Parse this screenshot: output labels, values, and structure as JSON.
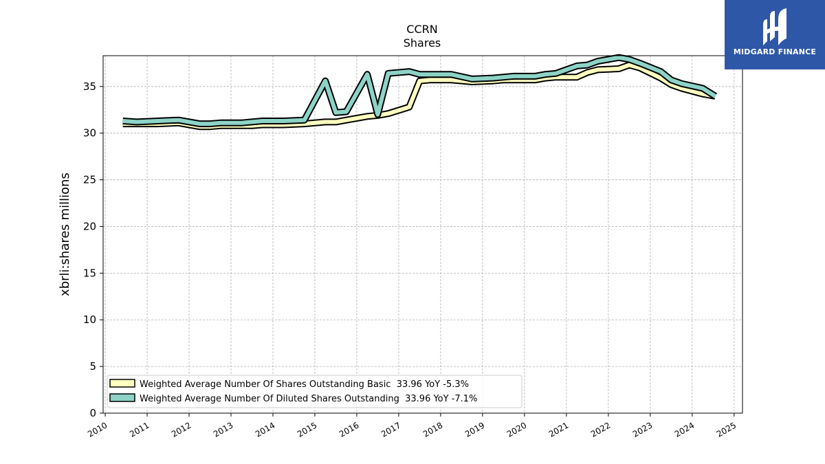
{
  "chart_data": {
    "type": "line",
    "title": "CCRN",
    "subtitle": "Shares",
    "xlabel": "",
    "ylabel": "xbrli:shares millions",
    "xlim": [
      2009.95,
      2025.2
    ],
    "ylim": [
      0,
      38.3
    ],
    "x_ticks": [
      "2010",
      "2011",
      "2012",
      "2013",
      "2014",
      "2015",
      "2016",
      "2017",
      "2018",
      "2019",
      "2020",
      "2021",
      "2022",
      "2023",
      "2024",
      "2025"
    ],
    "y_ticks": [
      "0",
      "5",
      "10",
      "15",
      "20",
      "25",
      "30",
      "35"
    ],
    "grid": true,
    "legend_position": "lower-left",
    "series": [
      {
        "name": "Weighted Average Number Of Shares Outstanding Basic  33.96 YoY -5.3%",
        "color": "#ffffc0",
        "points": [
          [
            2010.42,
            31.0
          ],
          [
            2010.75,
            31.0
          ],
          [
            2011.25,
            31.0
          ],
          [
            2011.75,
            31.1
          ],
          [
            2012.25,
            30.7
          ],
          [
            2012.5,
            30.7
          ],
          [
            2012.75,
            30.8
          ],
          [
            2013.25,
            30.8
          ],
          [
            2013.5,
            30.8
          ],
          [
            2013.75,
            30.9
          ],
          [
            2014.25,
            30.9
          ],
          [
            2014.75,
            31.0
          ],
          [
            2015.25,
            31.2
          ],
          [
            2015.5,
            31.2
          ],
          [
            2015.75,
            31.4
          ],
          [
            2016.25,
            31.8
          ],
          [
            2016.5,
            31.9
          ],
          [
            2016.75,
            32.1
          ],
          [
            2017.25,
            32.8
          ],
          [
            2017.5,
            35.6
          ],
          [
            2017.75,
            35.7
          ],
          [
            2018.25,
            35.7
          ],
          [
            2018.75,
            35.5
          ],
          [
            2019.25,
            35.6
          ],
          [
            2019.5,
            35.7
          ],
          [
            2019.75,
            35.7
          ],
          [
            2020.25,
            35.7
          ],
          [
            2020.5,
            35.9
          ],
          [
            2020.75,
            36.0
          ],
          [
            2021.25,
            36.0
          ],
          [
            2021.5,
            36.5
          ],
          [
            2021.75,
            36.8
          ],
          [
            2022.25,
            36.9
          ],
          [
            2022.5,
            37.3
          ],
          [
            2022.75,
            37.0
          ],
          [
            2023.25,
            35.9
          ],
          [
            2023.5,
            35.2
          ],
          [
            2023.75,
            34.8
          ],
          [
            2024.25,
            34.2
          ],
          [
            2024.55,
            33.96
          ]
        ]
      },
      {
        "name": "Weighted Average Number Of Diluted Shares Outstanding  33.96 YoY -7.1%",
        "color": "#8dd3c7",
        "points": [
          [
            2010.42,
            31.3
          ],
          [
            2010.75,
            31.2
          ],
          [
            2011.25,
            31.3
          ],
          [
            2011.75,
            31.4
          ],
          [
            2012.25,
            31.0
          ],
          [
            2012.5,
            31.0
          ],
          [
            2012.75,
            31.1
          ],
          [
            2013.25,
            31.1
          ],
          [
            2013.5,
            31.2
          ],
          [
            2013.75,
            31.3
          ],
          [
            2014.25,
            31.3
          ],
          [
            2014.75,
            31.4
          ],
          [
            2015.25,
            35.6
          ],
          [
            2015.5,
            32.2
          ],
          [
            2015.75,
            32.3
          ],
          [
            2016.25,
            36.3
          ],
          [
            2016.5,
            32.0
          ],
          [
            2016.75,
            36.4
          ],
          [
            2017.25,
            36.6
          ],
          [
            2017.5,
            36.3
          ],
          [
            2017.75,
            36.3
          ],
          [
            2018.25,
            36.3
          ],
          [
            2018.75,
            35.8
          ],
          [
            2019.25,
            35.9
          ],
          [
            2019.5,
            36.0
          ],
          [
            2019.75,
            36.1
          ],
          [
            2020.25,
            36.1
          ],
          [
            2020.5,
            36.3
          ],
          [
            2020.75,
            36.4
          ],
          [
            2021.25,
            37.2
          ],
          [
            2021.5,
            37.3
          ],
          [
            2021.75,
            37.7
          ],
          [
            2022.25,
            38.1
          ],
          [
            2022.5,
            37.9
          ],
          [
            2022.75,
            37.5
          ],
          [
            2023.25,
            36.6
          ],
          [
            2023.5,
            35.7
          ],
          [
            2023.75,
            35.3
          ],
          [
            2024.25,
            34.8
          ],
          [
            2024.55,
            33.96
          ]
        ]
      }
    ]
  },
  "logo": {
    "text": "MIDGARD FINANCE",
    "background": "#2e57a8"
  }
}
